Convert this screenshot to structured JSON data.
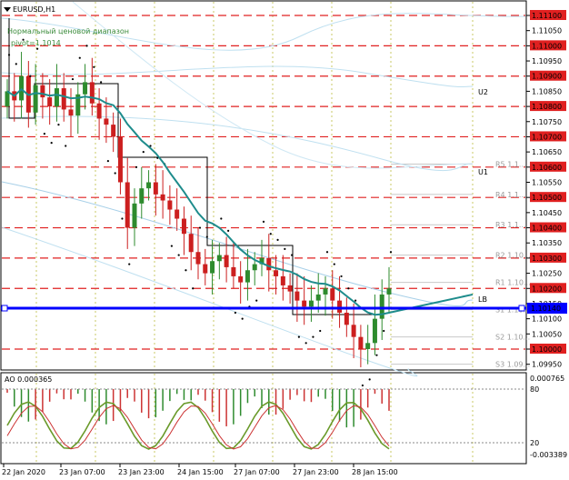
{
  "window": {
    "symbol_title": "EURUSD,H1"
  },
  "annotations": {
    "range_title": "Нормальный ценовой диапазон",
    "pivot_text": "pivot=1.1014",
    "lines": [
      {
        "label": "U2"
      },
      {
        "label": "U1"
      },
      {
        "label": "LB"
      }
    ],
    "pivot_levels": [
      {
        "label": "R5 1.1...",
        "price": 1.1061
      },
      {
        "label": "R4 1.1...",
        "price": 1.1051
      },
      {
        "label": "R3 1.1...",
        "price": 1.1041
      },
      {
        "label": "R2 1.10...",
        "price": 1.1031
      },
      {
        "label": "R1 1.10...",
        "price": 1.1022
      },
      {
        "label": "S1 1.10...",
        "price": 1.1013
      },
      {
        "label": "S2 1.10...",
        "price": 1.1004
      },
      {
        "label": "S3 1.09...",
        "price": 1.0995
      }
    ]
  },
  "price_axis": {
    "labels": [
      "1.11100",
      "1.11050",
      "1.11000",
      "1.10950",
      "1.10900",
      "1.10850",
      "1.10800",
      "1.10750",
      "1.10700",
      "1.10650",
      "1.10600",
      "1.10550",
      "1.10500",
      "1.10450",
      "1.10400",
      "1.10350",
      "1.10300",
      "1.10250",
      "1.10200",
      "1.10150",
      "1.10100",
      "1.10050",
      "1.10000",
      "1.09950"
    ],
    "current_price": "1.10140",
    "highlighted": [
      "1.11100",
      "1.11000",
      "1.10900",
      "1.10800",
      "1.10700",
      "1.10600",
      "1.10500",
      "1.10400",
      "1.10300",
      "1.10200",
      "1.10000"
    ]
  },
  "time_axis": {
    "labels": [
      "22 Jan 2020",
      "23 Jan 07:00",
      "23 Jan 23:00",
      "24 Jan 15:00",
      "27 Jan 07:00",
      "27 Jan 23:00",
      "28 Jan 15:00"
    ]
  },
  "oscillator": {
    "title": "AO 0.000365",
    "axis_labels": [
      "0.000765",
      "80",
      "20",
      "-0.003389"
    ]
  },
  "chart_data": {
    "type": "candlestick",
    "symbol": "EURUSD",
    "timeframe": "H1",
    "ylim": [
      1.0992,
      1.1113
    ],
    "dashed_levels": [
      1.111,
      1.11,
      1.109,
      1.108,
      1.107,
      1.106,
      1.105,
      1.104,
      1.103,
      1.102,
      1.1
    ],
    "current_price": 1.1014,
    "close_series": [
      1.1085,
      1.1082,
      1.109,
      1.1078,
      1.1087,
      1.1083,
      1.108,
      1.1086,
      1.1079,
      1.1077,
      1.1084,
      1.1088,
      1.1081,
      1.1076,
      1.1074,
      1.107,
      1.1055,
      1.104,
      1.1048,
      1.1053,
      1.1055,
      1.1051,
      1.1049,
      1.1046,
      1.1043,
      1.1038,
      1.1032,
      1.1028,
      1.1025,
      1.1029,
      1.1031,
      1.1027,
      1.1024,
      1.1022,
      1.1026,
      1.1028,
      1.103,
      1.1026,
      1.1024,
      1.1021,
      1.1019,
      1.1016,
      1.1014,
      1.1016,
      1.1018,
      1.102,
      1.1016,
      1.1012,
      1.1008,
      1.1004,
      1.1,
      1.1002,
      1.101,
      1.1018,
      1.102
    ]
  }
}
